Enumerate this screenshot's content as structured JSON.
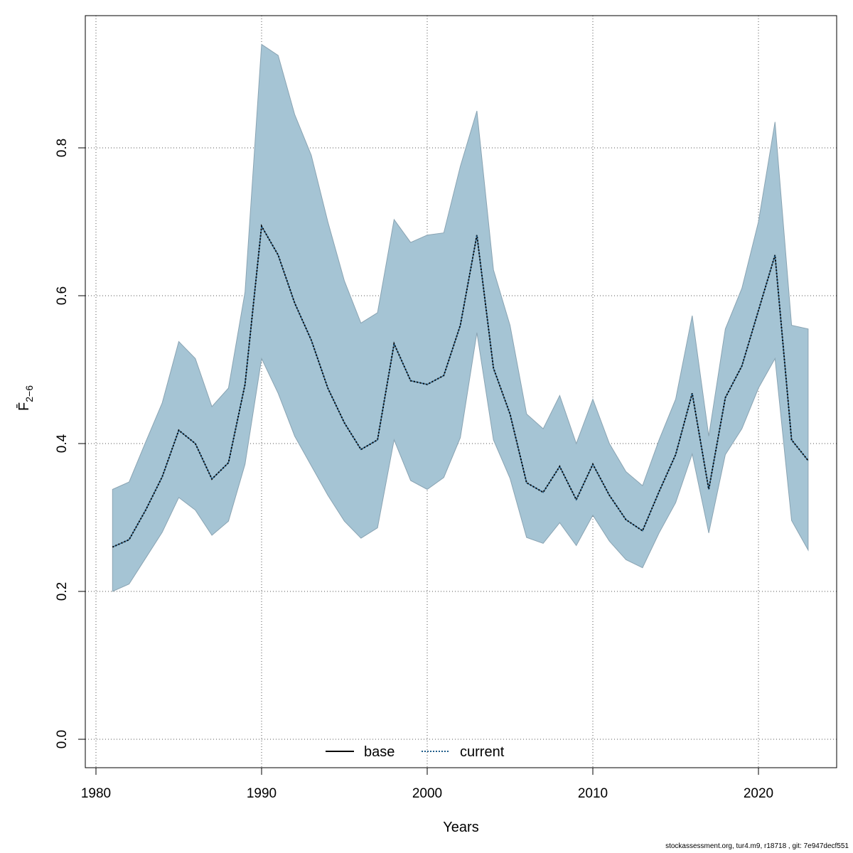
{
  "chart_data": {
    "type": "line",
    "xlabel": "Years",
    "ylabel": "F̄",
    "ylabel_subscript": "2−6",
    "xlim": [
      1980,
      2024
    ],
    "ylim": [
      0.0,
      0.95
    ],
    "xticks": [
      1980,
      1990,
      2000,
      2010,
      2020
    ],
    "yticks": [
      "0.0",
      "0.2",
      "0.4",
      "0.6",
      "0.8"
    ],
    "grid": true,
    "legend_position": "bottom-center",
    "colors": {
      "band": "#a5c4d4",
      "band_edge": "#8aa4b3",
      "base": "#000000",
      "current": "#1f5d8a"
    },
    "legend": [
      {
        "label": "base",
        "style": "solid"
      },
      {
        "label": "current",
        "style": "dotted"
      }
    ],
    "x": [
      1981,
      1982,
      1983,
      1984,
      1985,
      1986,
      1987,
      1988,
      1989,
      1990,
      1991,
      1992,
      1993,
      1994,
      1995,
      1996,
      1997,
      1998,
      1999,
      2000,
      2001,
      2002,
      2003,
      2004,
      2005,
      2006,
      2007,
      2008,
      2009,
      2010,
      2011,
      2012,
      2013,
      2014,
      2015,
      2016,
      2017,
      2018,
      2019,
      2020,
      2021,
      2022,
      2023
    ],
    "series": [
      {
        "name": "base",
        "values": [
          0.26,
          0.27,
          0.31,
          0.355,
          0.418,
          0.4,
          0.352,
          0.374,
          0.48,
          0.694,
          0.655,
          0.59,
          0.54,
          0.475,
          0.428,
          0.392,
          0.405,
          0.535,
          0.485,
          0.48,
          0.492,
          0.56,
          0.682,
          0.502,
          0.44,
          0.347,
          0.334,
          0.369,
          0.324,
          0.372,
          0.33,
          0.297,
          0.282,
          0.335,
          0.385,
          0.468,
          0.338,
          0.462,
          0.505,
          0.58,
          0.655,
          0.405,
          0.377
        ]
      },
      {
        "name": "current",
        "values": [
          0.26,
          0.27,
          0.31,
          0.355,
          0.418,
          0.4,
          0.352,
          0.374,
          0.48,
          0.694,
          0.655,
          0.59,
          0.54,
          0.475,
          0.428,
          0.392,
          0.405,
          0.535,
          0.485,
          0.48,
          0.492,
          0.56,
          0.682,
          0.502,
          0.44,
          0.347,
          0.334,
          0.369,
          0.324,
          0.372,
          0.33,
          0.297,
          0.282,
          0.335,
          0.385,
          0.468,
          0.338,
          0.462,
          0.505,
          0.58,
          0.655,
          0.405,
          0.377
        ]
      }
    ],
    "confidence_band": {
      "lower": [
        0.2,
        0.21,
        0.245,
        0.28,
        0.327,
        0.31,
        0.276,
        0.295,
        0.372,
        0.515,
        0.468,
        0.41,
        0.37,
        0.33,
        0.295,
        0.272,
        0.286,
        0.405,
        0.35,
        0.338,
        0.354,
        0.408,
        0.55,
        0.405,
        0.353,
        0.273,
        0.265,
        0.293,
        0.262,
        0.303,
        0.268,
        0.243,
        0.232,
        0.279,
        0.32,
        0.386,
        0.279,
        0.385,
        0.42,
        0.475,
        0.515,
        0.296,
        0.256
      ],
      "upper": [
        0.338,
        0.348,
        0.402,
        0.455,
        0.538,
        0.515,
        0.45,
        0.475,
        0.605,
        0.94,
        0.925,
        0.845,
        0.79,
        0.7,
        0.62,
        0.563,
        0.577,
        0.703,
        0.672,
        0.682,
        0.685,
        0.775,
        0.85,
        0.635,
        0.56,
        0.44,
        0.42,
        0.465,
        0.4,
        0.46,
        0.4,
        0.362,
        0.343,
        0.405,
        0.46,
        0.573,
        0.41,
        0.555,
        0.61,
        0.7,
        0.835,
        0.56,
        0.555
      ]
    }
  },
  "footer": {
    "text": "stockassessment.org, tur4.m9, r18718 , git: 7e947decf551"
  }
}
